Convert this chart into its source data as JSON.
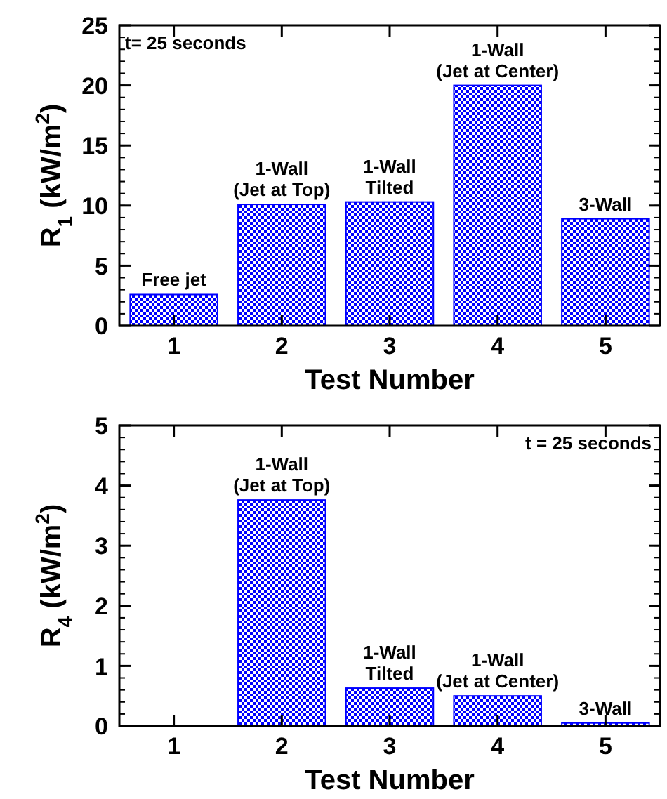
{
  "chart_data": [
    {
      "type": "bar",
      "categories": [
        "1",
        "2",
        "3",
        "4",
        "5"
      ],
      "values": [
        2.6,
        10.1,
        10.3,
        20.0,
        8.9
      ],
      "color": "#0000ff",
      "xlabel": "Test Number",
      "ylabel": "R$_{1}$ (kW/m$^{2}$)",
      "ylim": [
        0,
        25
      ],
      "yticks": [
        0,
        5,
        10,
        15,
        20,
        25
      ],
      "grid": false,
      "annotations": [
        "t= 25 seconds",
        {
          "text": "Free jet",
          "x": "1",
          "y": 2.6
        },
        {
          "text": "1-Wall\n(Jet at Top)",
          "x": "2",
          "y": 10.1
        },
        {
          "text": "1-Wall\nTilted",
          "x": "3",
          "y": 10.3
        },
        {
          "text": "1-Wall\n(Jet at Center)",
          "x": "4",
          "y": 20.0
        },
        {
          "text": "3-Wall",
          "x": "5",
          "y": 8.9
        }
      ]
    },
    {
      "type": "bar",
      "categories": [
        "1",
        "2",
        "3",
        "4",
        "5"
      ],
      "values": [
        null,
        3.76,
        0.63,
        0.5,
        0.05
      ],
      "color": "#0000ff",
      "xlabel": "Test Number",
      "ylabel": "R$_{4}$ (kW/m$^{2}$)",
      "ylim": [
        0,
        5
      ],
      "yticks": [
        0,
        1,
        2,
        3,
        4,
        5
      ],
      "grid": false,
      "annotations": [
        "t = 25 seconds",
        {
          "text": "1-Wall\n(Jet at Top)",
          "x": "2",
          "y": 3.76
        },
        {
          "text": "1-Wall\nTilted",
          "x": "3",
          "y": 0.63
        },
        {
          "text": "1-Wall\n(Jet at Center)",
          "x": "4",
          "y": 0.5
        },
        {
          "text": "3-Wall",
          "x": "5",
          "y": 0.05
        }
      ]
    }
  ]
}
